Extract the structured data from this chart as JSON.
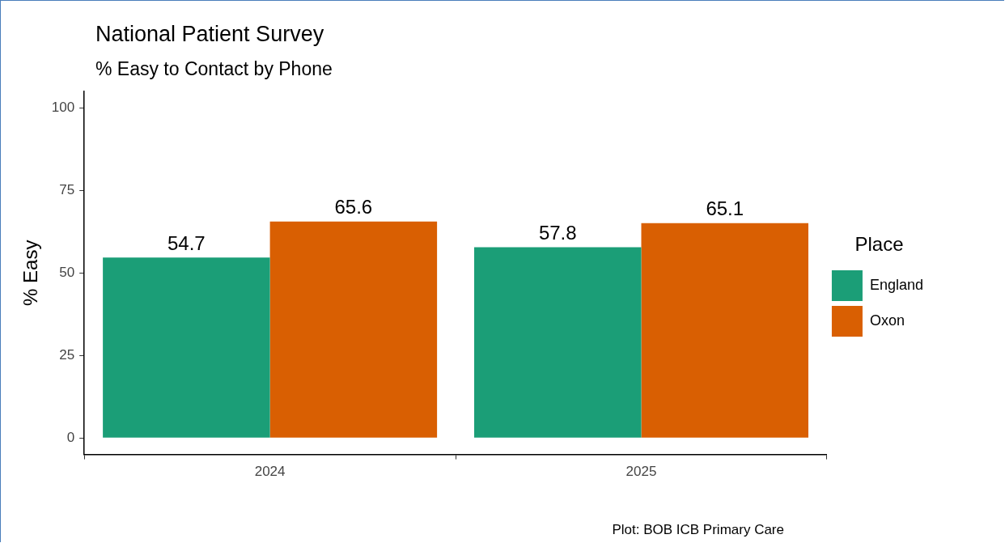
{
  "chart_data": {
    "type": "bar",
    "title": "National Patient Survey",
    "subtitle": "% Easy to Contact by Phone",
    "ylabel": "% Easy",
    "legend_title": "Place",
    "categories": [
      "2024",
      "2025"
    ],
    "series": [
      {
        "name": "England",
        "color": "#1b9e77",
        "values": [
          54.7,
          57.8
        ]
      },
      {
        "name": "Oxon",
        "color": "#d95f02",
        "values": [
          65.6,
          65.1
        ]
      }
    ],
    "ylim": [
      -5,
      105
    ],
    "yticks": [
      0,
      25,
      50,
      75,
      100
    ],
    "grid": false,
    "legend": "right",
    "data_labels": true,
    "annotations": [
      "Plot: BOB ICB Primary Care"
    ]
  }
}
